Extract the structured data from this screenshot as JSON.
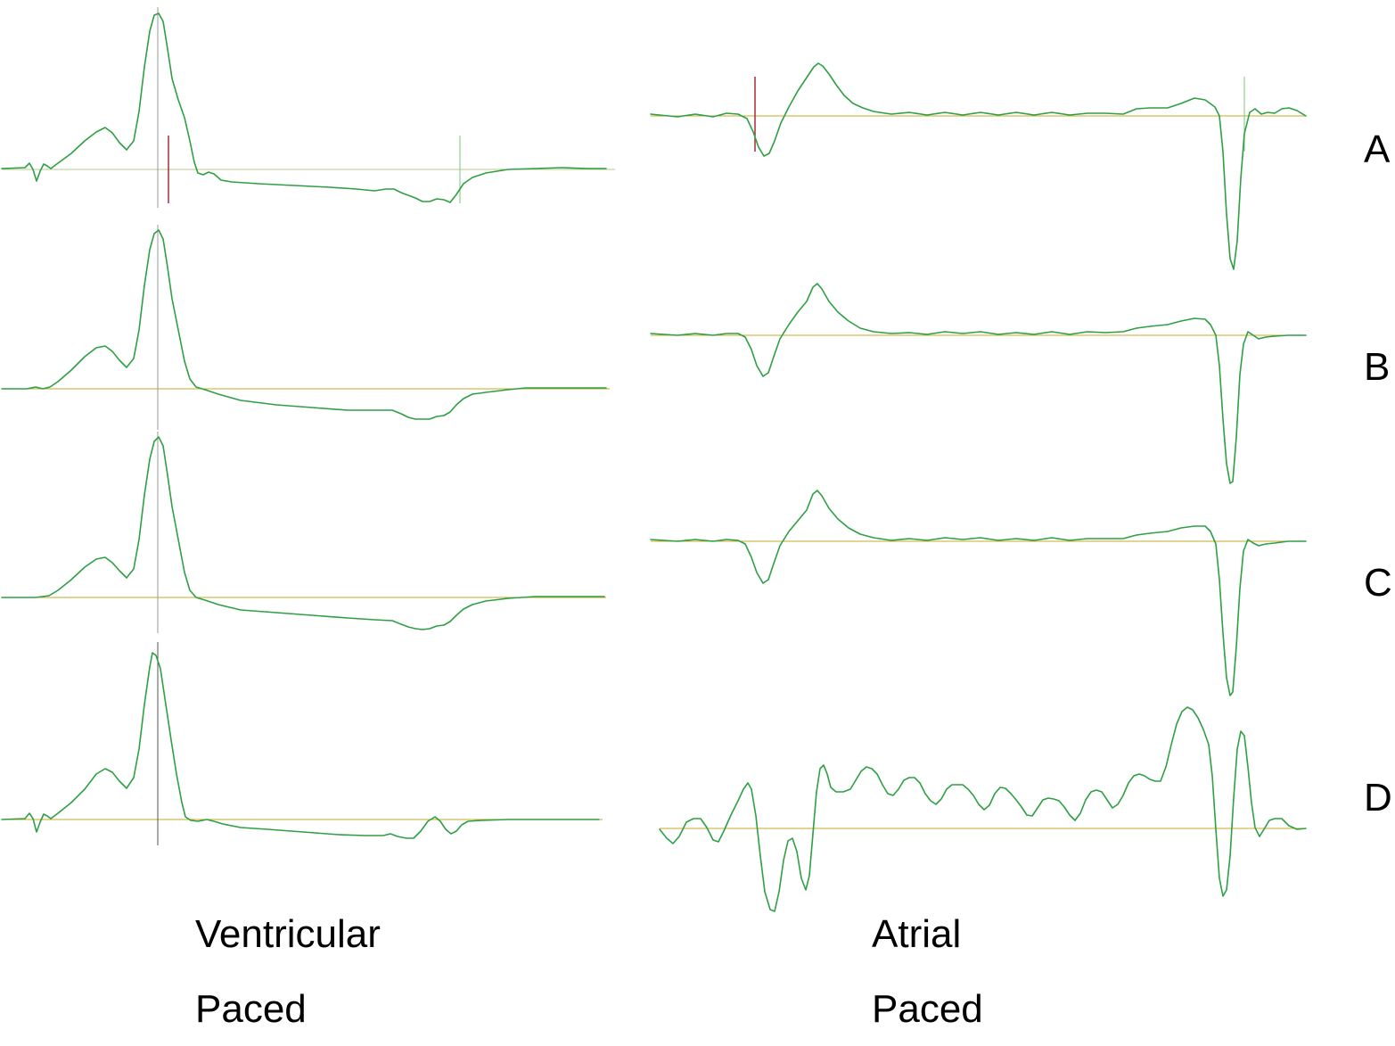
{
  "rows": [
    {
      "label": "A"
    },
    {
      "label": "B"
    },
    {
      "label": "C"
    },
    {
      "label": "D"
    }
  ],
  "columns": {
    "ventricular": {
      "line1": "Ventricular",
      "line2": "Paced"
    },
    "atrial": {
      "line1": "Atrial",
      "line2": "Paced"
    }
  },
  "colors": {
    "trace": "#2ea043",
    "baseline": "#c8a82a",
    "marker_red": "#a11d2a"
  }
}
